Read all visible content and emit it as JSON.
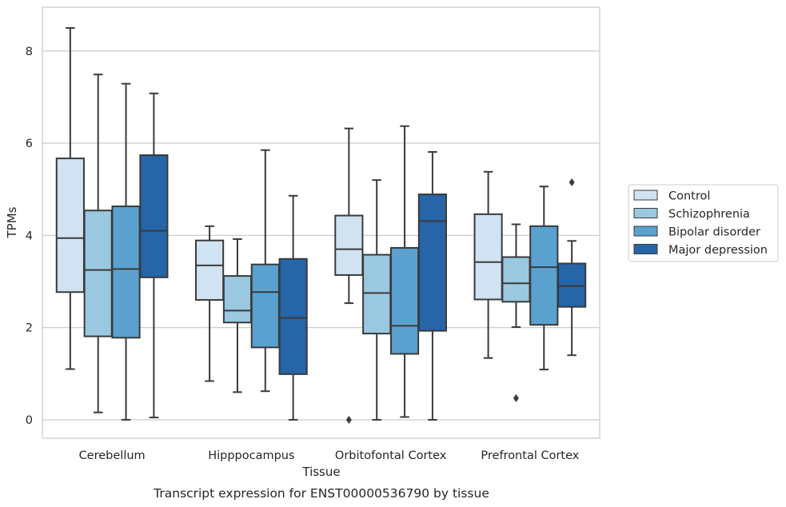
{
  "chart_data": {
    "type": "box",
    "caption": "Transcript expression for ENST00000536790 by tissue",
    "xlabel": "Tissue",
    "ylabel": "TPMs",
    "ylim": [
      -0.4,
      8.95
    ],
    "yticks": [
      0,
      2,
      4,
      6,
      8
    ],
    "grid": "horizontal",
    "legend_position": "right",
    "categories": [
      "Cerebellum",
      "Hipppocampus",
      "Orbitofontal Cortex",
      "Prefrontal Cortex"
    ],
    "series": [
      {
        "name": "Control",
        "color": "#d1e2f2",
        "boxes": [
          {
            "whisker_low": 1.1,
            "q1": 2.77,
            "median": 3.94,
            "q3": 5.67,
            "whisker_high": 8.5,
            "outliers": []
          },
          {
            "whisker_low": 0.84,
            "q1": 2.6,
            "median": 3.35,
            "q3": 3.89,
            "whisker_high": 4.2,
            "outliers": []
          },
          {
            "whisker_low": 2.53,
            "q1": 3.14,
            "median": 3.7,
            "q3": 4.43,
            "whisker_high": 6.32,
            "outliers": [
              0.0
            ]
          },
          {
            "whisker_low": 1.34,
            "q1": 2.61,
            "median": 3.42,
            "q3": 4.46,
            "whisker_high": 5.38,
            "outliers": []
          }
        ]
      },
      {
        "name": "Schizophrenia",
        "color": "#9ac8e0",
        "boxes": [
          {
            "whisker_low": 0.16,
            "q1": 1.81,
            "median": 3.25,
            "q3": 4.54,
            "whisker_high": 7.49,
            "outliers": []
          },
          {
            "whisker_low": 0.6,
            "q1": 2.11,
            "median": 2.37,
            "q3": 3.12,
            "whisker_high": 3.92,
            "outliers": []
          },
          {
            "whisker_low": 0.0,
            "q1": 1.87,
            "median": 2.75,
            "q3": 3.58,
            "whisker_high": 5.2,
            "outliers": []
          },
          {
            "whisker_low": 2.01,
            "q1": 2.56,
            "median": 2.96,
            "q3": 3.53,
            "whisker_high": 4.24,
            "outliers": [
              0.47
            ]
          }
        ]
      },
      {
        "name": "Bipolar disorder",
        "color": "#5aa1cf",
        "boxes": [
          {
            "whisker_low": 0.0,
            "q1": 1.78,
            "median": 3.27,
            "q3": 4.63,
            "whisker_high": 7.29,
            "outliers": []
          },
          {
            "whisker_low": 0.62,
            "q1": 1.57,
            "median": 2.77,
            "q3": 3.37,
            "whisker_high": 5.85,
            "outliers": []
          },
          {
            "whisker_low": 0.06,
            "q1": 1.43,
            "median": 2.04,
            "q3": 3.73,
            "whisker_high": 6.37,
            "outliers": []
          },
          {
            "whisker_low": 1.09,
            "q1": 2.06,
            "median": 3.31,
            "q3": 4.2,
            "whisker_high": 5.06,
            "outliers": []
          }
        ]
      },
      {
        "name": "Major depression",
        "color": "#2565a8",
        "boxes": [
          {
            "whisker_low": 0.05,
            "q1": 3.09,
            "median": 4.1,
            "q3": 5.74,
            "whisker_high": 7.08,
            "outliers": []
          },
          {
            "whisker_low": 0.0,
            "q1": 0.99,
            "median": 2.21,
            "q3": 3.49,
            "whisker_high": 4.86,
            "outliers": []
          },
          {
            "whisker_low": 0.0,
            "q1": 1.93,
            "median": 4.31,
            "q3": 4.89,
            "whisker_high": 5.81,
            "outliers": []
          },
          {
            "whisker_low": 1.4,
            "q1": 2.45,
            "median": 2.9,
            "q3": 3.39,
            "whisker_high": 3.88,
            "outliers": [
              5.15
            ]
          }
        ]
      }
    ]
  }
}
